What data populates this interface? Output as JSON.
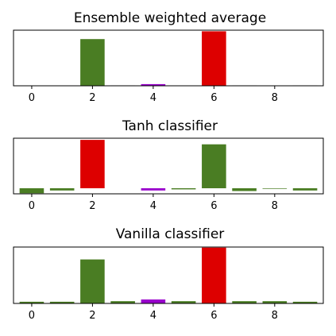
{
  "chart_data": [
    {
      "type": "bar",
      "title": "Ensemble weighted average",
      "categories": [
        0,
        1,
        2,
        3,
        4,
        5,
        6,
        7,
        8,
        9
      ],
      "xticks": [
        "0",
        "2",
        "4",
        "6",
        "8"
      ],
      "xlim": [
        -0.6,
        9.6
      ],
      "ylim": [
        0,
        1.0
      ],
      "values": [
        0.0,
        0.0,
        0.84,
        0.01,
        0.03,
        0.0,
        0.98,
        0.01,
        0.0,
        0.01
      ],
      "colors": [
        "#ffffff",
        "#ffffff",
        "#4a7d23",
        "#f2f2f2",
        "#9900cc",
        "#ffffff",
        "#dd0000",
        "#f2f2f2",
        "#ffffff",
        "#f2f2f2"
      ],
      "grid": false
    },
    {
      "type": "bar",
      "title": "Tanh classifier",
      "categories": [
        0,
        1,
        2,
        3,
        4,
        5,
        6,
        7,
        8,
        9
      ],
      "xticks": [
        "0",
        "2",
        "4",
        "6",
        "8"
      ],
      "xlim": [
        -0.6,
        9.6
      ],
      "ylim": [
        -0.1,
        0.9
      ],
      "values": [
        -0.09,
        -0.04,
        0.87,
        0.0,
        -0.04,
        -0.02,
        0.79,
        -0.05,
        -0.01,
        -0.04
      ],
      "colors": [
        "#4a7d23",
        "#4a7d23",
        "#dd0000",
        "#ffffff",
        "#9900cc",
        "#4a7d23",
        "#4a7d23",
        "#4a7d23",
        "#4a7d23",
        "#4a7d23"
      ],
      "grid": false
    },
    {
      "type": "bar",
      "title": "Vanilla classifier",
      "categories": [
        0,
        1,
        2,
        3,
        4,
        5,
        6,
        7,
        8,
        9
      ],
      "xticks": [
        "0",
        "2",
        "4",
        "6",
        "8"
      ],
      "xlim": [
        -0.6,
        9.6
      ],
      "ylim": [
        0,
        1.0
      ],
      "values": [
        0.03,
        0.03,
        0.78,
        0.04,
        0.07,
        0.04,
        0.99,
        0.04,
        0.04,
        0.03
      ],
      "colors": [
        "#4a7d23",
        "#4a7d23",
        "#4a7d23",
        "#4a7d23",
        "#9900cc",
        "#4a7d23",
        "#dd0000",
        "#4a7d23",
        "#4a7d23",
        "#4a7d23"
      ],
      "grid": false
    }
  ]
}
